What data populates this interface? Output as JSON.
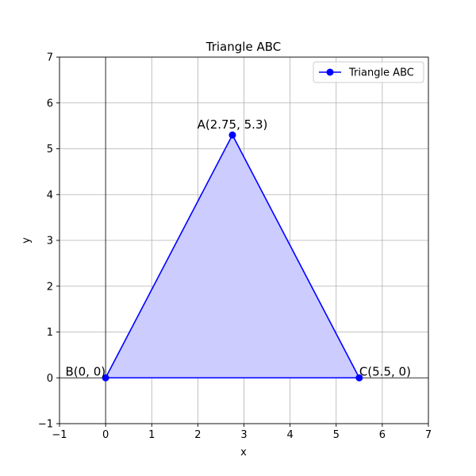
{
  "chart_data": {
    "type": "line",
    "title": "Triangle ABC",
    "xlabel": "x",
    "ylabel": "y",
    "xlim": [
      -1,
      7
    ],
    "ylim": [
      -1,
      7
    ],
    "xticks": [
      -1,
      0,
      1,
      2,
      3,
      4,
      5,
      6,
      7
    ],
    "yticks": [
      -1,
      0,
      1,
      2,
      3,
      4,
      5,
      6,
      7
    ],
    "xtick_labels": [
      "−1",
      "0",
      "1",
      "2",
      "3",
      "4",
      "5",
      "6",
      "7"
    ],
    "ytick_labels": [
      "−1",
      "0",
      "1",
      "2",
      "3",
      "4",
      "5",
      "6",
      "7"
    ],
    "grid": true,
    "legend_position": "top-right",
    "series": [
      {
        "name": "Triangle ABC",
        "color": "#0000ff",
        "fill_color": "#ccccff",
        "marker": "circle",
        "closed": true,
        "points": [
          {
            "x": 2.75,
            "y": 5.3,
            "label": "A(2.75, 5.3)"
          },
          {
            "x": 0,
            "y": 0,
            "label": "B(0, 0)"
          },
          {
            "x": 5.5,
            "y": 0,
            "label": "C(5.5, 0)"
          }
        ]
      }
    ],
    "reference_lines": [
      {
        "axis": "x",
        "value": 0,
        "color": "#000000"
      },
      {
        "axis": "y",
        "value": 0,
        "color": "#000000"
      }
    ]
  }
}
